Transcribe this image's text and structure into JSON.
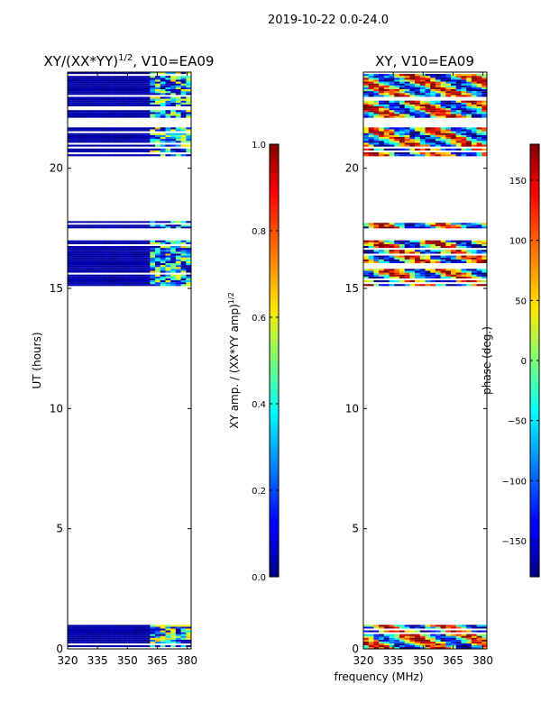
{
  "figure_title": "2019-10-22 0.0-24.0",
  "shared_xlabel": "frequency (MHz)",
  "chart_data": [
    {
      "type": "heatmap",
      "title_base": "XY/(XX*YY)",
      "title_sup": "1/2",
      "title_tail": ", V10=EA09",
      "xlabel": "",
      "ylabel": "UT (hours)",
      "xlim": [
        320,
        382
      ],
      "ylim": [
        0,
        24
      ],
      "xticks": [
        320,
        335,
        350,
        365,
        380
      ],
      "yticks": [
        0,
        5,
        10,
        15,
        20
      ],
      "data_bands_ut": [
        [
          0.0,
          1.0
        ],
        [
          15.1,
          17.0
        ],
        [
          17.5,
          17.8
        ],
        [
          20.5,
          21.7
        ],
        [
          22.1,
          24.0
        ]
      ],
      "colorbar": {
        "label_base": "XY amp. / (XX*YY amp)",
        "label_sup": "1/2",
        "range": [
          0.0,
          1.0
        ],
        "ticks": [
          "0.0",
          "0.2",
          "0.4",
          "0.6",
          "0.8",
          "1.0"
        ],
        "colormap": "jet"
      }
    },
    {
      "type": "heatmap",
      "title": "XY, V10=EA09",
      "xlabel": "frequency (MHz)",
      "ylabel": "",
      "xlim": [
        320,
        382
      ],
      "ylim": [
        0,
        24
      ],
      "xticks": [
        320,
        335,
        350,
        365,
        380
      ],
      "yticks": [
        0,
        5,
        10,
        15,
        20
      ],
      "data_bands_ut": [
        [
          0.0,
          1.0
        ],
        [
          15.1,
          17.0
        ],
        [
          17.5,
          17.8
        ],
        [
          20.5,
          21.7
        ],
        [
          22.1,
          24.0
        ]
      ],
      "colorbar": {
        "label": "phase (deg.)",
        "range": [
          -180,
          180
        ],
        "ticks": [
          -150,
          -100,
          -50,
          0,
          50,
          100,
          150
        ],
        "colormap": "jet"
      }
    }
  ]
}
